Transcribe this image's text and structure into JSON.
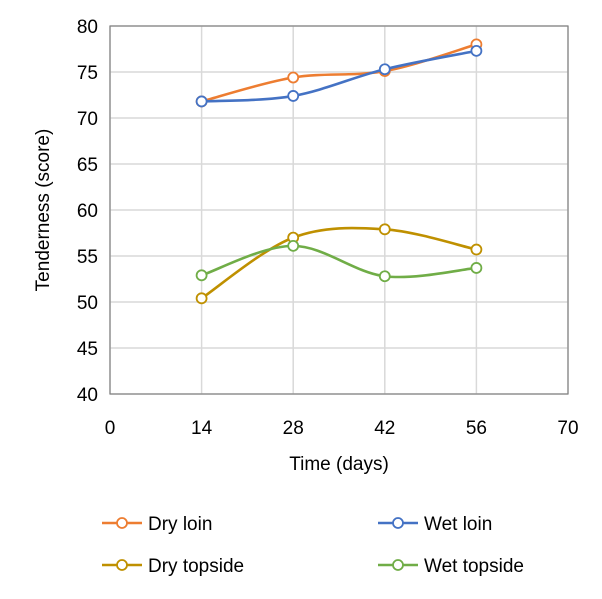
{
  "chart_data": {
    "type": "line",
    "title": "",
    "xlabel": "Time (days)",
    "ylabel": "Tenderness (score)",
    "xlim": [
      0,
      70
    ],
    "ylim": [
      40,
      80
    ],
    "x_ticks": [
      0,
      14,
      28,
      42,
      56,
      70
    ],
    "y_ticks": [
      40,
      45,
      50,
      55,
      60,
      65,
      70,
      75,
      80
    ],
    "grid": true,
    "smooth": true,
    "legend_position": "bottom",
    "series": [
      {
        "name": "Dry loin",
        "color": "#ED7D31",
        "x": [
          14,
          28,
          42,
          56
        ],
        "y": [
          71.8,
          74.4,
          75.1,
          78.0
        ]
      },
      {
        "name": "Wet loin",
        "color": "#4472C4",
        "x": [
          14,
          28,
          42,
          56
        ],
        "y": [
          71.8,
          72.4,
          75.3,
          77.3
        ]
      },
      {
        "name": "Dry topside",
        "color": "#BF9000",
        "x": [
          14,
          28,
          42,
          56
        ],
        "y": [
          50.4,
          57.0,
          57.9,
          55.7
        ]
      },
      {
        "name": "Wet topside",
        "color": "#70AD47",
        "x": [
          14,
          28,
          42,
          56
        ],
        "y": [
          52.9,
          56.1,
          52.8,
          53.7
        ]
      }
    ]
  }
}
